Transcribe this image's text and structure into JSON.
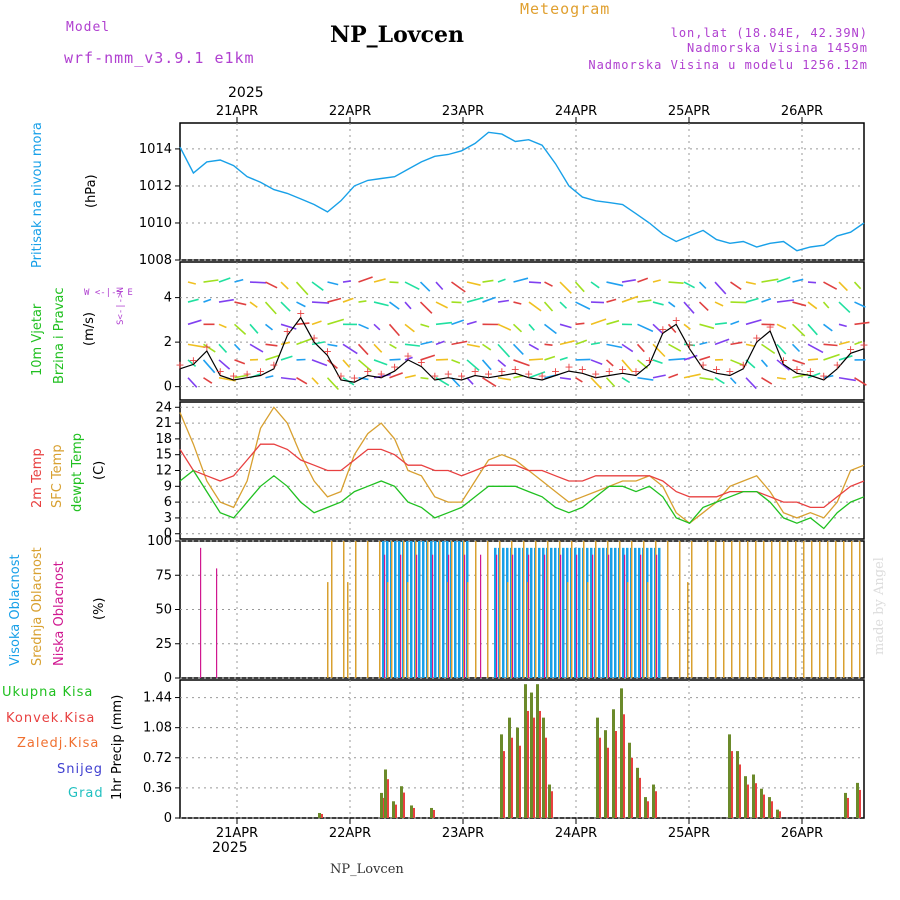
{
  "header": {
    "model_label": "Model",
    "model_name": "wrf-nmm_v3.9.1  e1km",
    "title": "NP_Lovcen",
    "meteogram_label": "Meteogram",
    "location": "lon,lat (18.84E, 42.39N)",
    "altitude": "Nadmorska Visina 1459m",
    "model_altitude": "Nadmorska Visina u modelu 1256.12m",
    "credit": "made by Angel",
    "footer": "NP_Lovcen"
  },
  "colors": {
    "purple": "#b040d0",
    "orange": "#e0a030",
    "pressure": "#18a0e8",
    "wind_label": "#20c020",
    "temp2m": "#e84040",
    "sfc": "#d8a030",
    "dew": "#20c020",
    "cloud_high": "#18a0e8",
    "cloud_mid": "#d8a030",
    "cloud_low": "#d01890",
    "precip_total": "#20c020",
    "precip_conv": "#e84040",
    "precip_frz": "#f07030",
    "precip_snow": "#4040d0",
    "precip_hail": "#20c0c0"
  },
  "time_axis": {
    "year_top": "2025",
    "year_bottom": "2025",
    "days": [
      "21APR",
      "22APR",
      "23APR",
      "24APR",
      "25APR",
      "26APR"
    ]
  },
  "panels": {
    "pressure": {
      "label": "Pritisak na nivou mora",
      "unit": "(hPa)",
      "ticks": [
        "1008",
        "1010",
        "1012",
        "1014"
      ]
    },
    "wind": {
      "label1": "10m Vjetar",
      "label2": "Brzina i Pravac",
      "unit": "(m/s)",
      "ticks": [
        "0",
        "2",
        "4"
      ],
      "compass_ns": "S<-|->N",
      "compass_we": "W <-|-> E"
    },
    "temp": {
      "label1": "2m Temp",
      "label2": "SFC Temp",
      "label3": "dewpt Temp",
      "unit": "(C)",
      "ticks": [
        "0",
        "3",
        "6",
        "9",
        "12",
        "15",
        "18",
        "21",
        "24"
      ]
    },
    "cloud": {
      "label1": "Visoka Oblacnost",
      "label2": "Srednja Oblacnost",
      "label3": "Niska Oblacnost",
      "unit": "(%)",
      "ticks": [
        "0",
        "25",
        "50",
        "75",
        "100"
      ]
    },
    "precip": {
      "labels": [
        "Ukupna Kisa",
        "Konvek.Kisa",
        "Zaledj.Kisa",
        "Snijeg",
        "Grad"
      ],
      "unit": "1hr Precip (mm)",
      "ticks": [
        "0",
        "0.36",
        "0.72",
        "1.08",
        "1.44"
      ]
    }
  },
  "chart_data": [
    {
      "type": "line",
      "title": "Pritisak na nivou mora",
      "ylabel": "(hPa)",
      "ylim": [
        1008,
        1015.4
      ],
      "series": [
        {
          "name": "Pritisak na nivou mora",
          "values": [
            1014.1,
            1012.7,
            1013.3,
            1013.4,
            1013.1,
            1012.5,
            1012.2,
            1011.8,
            1011.6,
            1011.3,
            1011.0,
            1010.6,
            1011.2,
            1012.0,
            1012.3,
            1012.4,
            1012.5,
            1012.9,
            1013.3,
            1013.6,
            1013.7,
            1013.9,
            1014.3,
            1014.9,
            1014.8,
            1014.4,
            1014.5,
            1014.2,
            1013.2,
            1012.0,
            1011.4,
            1011.2,
            1011.1,
            1011.0,
            1010.5,
            1010.0,
            1009.4,
            1009.0,
            1009.3,
            1009.6,
            1009.1,
            1008.9,
            1009.0,
            1008.7,
            1008.9,
            1009.0,
            1008.5,
            1008.7,
            1008.8,
            1009.3,
            1009.5,
            1010.0
          ]
        }
      ]
    },
    {
      "type": "line",
      "title": "10m Vjetar",
      "ylabel": "(m/s)",
      "ylim": [
        -0.6,
        5.6
      ],
      "series": [
        {
          "name": "Brzina",
          "values": [
            0.8,
            1.0,
            1.6,
            0.5,
            0.3,
            0.4,
            0.5,
            0.8,
            2.3,
            3.1,
            2.0,
            1.4,
            0.3,
            0.2,
            0.5,
            0.4,
            0.7,
            1.2,
            0.9,
            0.3,
            0.4,
            0.3,
            0.5,
            0.4,
            0.5,
            0.6,
            0.4,
            0.3,
            0.5,
            0.7,
            0.6,
            0.4,
            0.5,
            0.6,
            0.5,
            1.0,
            2.4,
            2.8,
            1.7,
            0.8,
            0.6,
            0.5,
            0.8,
            2.0,
            2.5,
            1.0,
            0.6,
            0.5,
            0.3,
            0.8,
            1.5,
            1.7
          ]
        }
      ]
    },
    {
      "type": "line",
      "title": "Temp",
      "ylabel": "(C)",
      "ylim": [
        -1,
        25
      ],
      "series": [
        {
          "name": "2m Temp",
          "values": [
            16,
            12,
            11,
            10,
            11,
            14,
            17,
            17,
            16,
            14,
            13,
            12,
            12,
            14,
            16,
            16,
            15,
            13,
            13,
            12,
            12,
            11,
            12,
            13,
            13,
            13,
            12,
            12,
            11,
            10,
            10,
            11,
            11,
            11,
            11,
            11,
            10,
            8,
            7,
            7,
            7,
            8,
            8,
            8,
            7,
            6,
            6,
            5,
            5,
            7,
            9,
            10
          ]
        },
        {
          "name": "SFC Temp",
          "values": [
            23,
            17,
            10,
            6,
            5,
            10,
            20,
            24,
            21,
            15,
            10,
            7,
            8,
            15,
            19,
            21,
            18,
            12,
            11,
            7,
            6,
            6,
            10,
            14,
            15,
            14,
            12,
            10,
            8,
            6,
            7,
            8,
            9,
            10,
            10,
            11,
            9,
            4,
            2,
            4,
            6,
            9,
            10,
            11,
            8,
            4,
            3,
            4,
            3,
            6,
            12,
            13
          ]
        },
        {
          "name": "dewpt Temp",
          "values": [
            10,
            12,
            8,
            4,
            3,
            6,
            9,
            11,
            9,
            6,
            4,
            5,
            6,
            8,
            9,
            10,
            9,
            6,
            5,
            3,
            4,
            5,
            7,
            9,
            9,
            9,
            8,
            7,
            5,
            4,
            5,
            7,
            9,
            9,
            8,
            9,
            7,
            3,
            2,
            5,
            6,
            7,
            8,
            8,
            6,
            3,
            2,
            3,
            1,
            4,
            6,
            7
          ]
        }
      ]
    },
    {
      "type": "bar",
      "title": "Oblacnost",
      "ylabel": "(%)",
      "ylim": [
        0,
        100
      ],
      "series": [
        {
          "name": "Visoka Oblacnost"
        },
        {
          "name": "Srednja Oblacnost"
        },
        {
          "name": "Niska Oblacnost"
        }
      ]
    },
    {
      "type": "bar",
      "title": "1hr Precip",
      "ylabel": "1hr Precip (mm)",
      "ylim": [
        0,
        1.65
      ],
      "series": [
        {
          "name": "Ukupna Kisa"
        },
        {
          "name": "Konvek.Kisa"
        },
        {
          "name": "Zaledj.Kisa"
        },
        {
          "name": "Snijeg"
        },
        {
          "name": "Grad"
        }
      ]
    }
  ]
}
